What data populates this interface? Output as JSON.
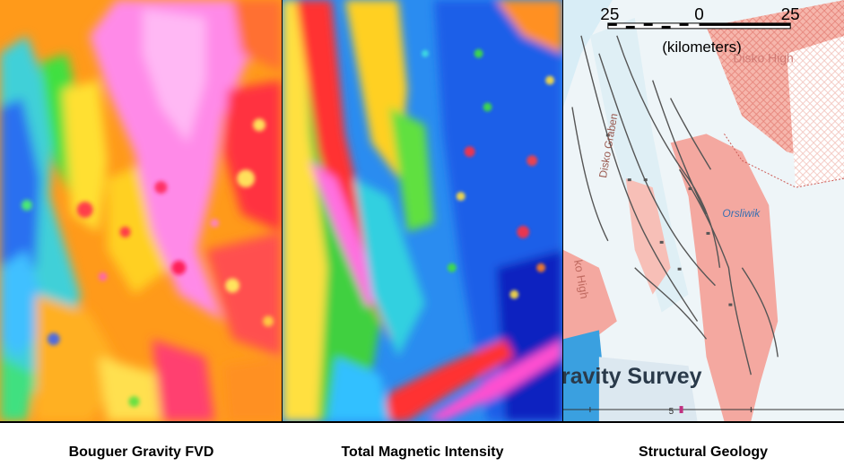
{
  "panels": [
    {
      "id": "bouguer",
      "caption": "Bouguer Gravity FVD"
    },
    {
      "id": "magnetic",
      "caption": "Total Magnetic Intensity"
    },
    {
      "id": "geology",
      "caption": "Structural Geology"
    }
  ],
  "scale_bar": {
    "left_label": "25",
    "mid_label": "0",
    "right_label": "25",
    "unit": "(kilometers)"
  },
  "map_labels": {
    "disko_graben": "Disko Graben",
    "disko_high": "Disko High",
    "orsliwik": "Orsliwik",
    "ko_high": "ko High",
    "gravity_survey": "ravity Survey",
    "grid_number": "5"
  },
  "colors": {
    "gravity_fill": "#f4a8a0",
    "water": "#dff0f7",
    "deep_water": "#3aa0e0",
    "fault": "#555555"
  }
}
